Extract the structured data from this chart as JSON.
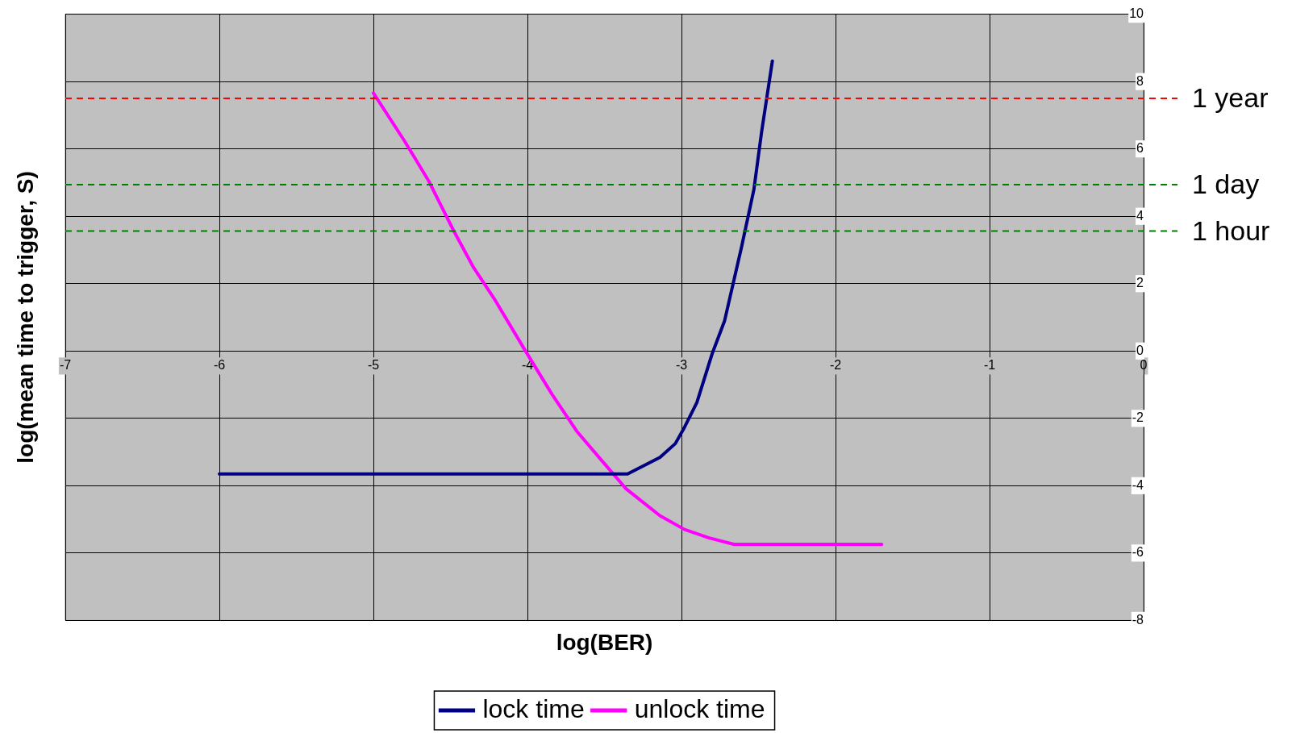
{
  "chart_data": {
    "type": "line",
    "xlabel": "log(BER)",
    "ylabel": "log(mean time to trigger, S)",
    "xlim": [
      -7,
      0
    ],
    "xticks": [
      -7,
      -6,
      -5,
      -4,
      -3,
      -2,
      -1,
      0
    ],
    "ylim": [
      -8,
      10
    ],
    "yticks": [
      -8,
      -6,
      -4,
      -2,
      0,
      2,
      4,
      6,
      8,
      10
    ],
    "grid": true,
    "legend": "bottom",
    "marker": "none",
    "line_style": "solid",
    "series": [
      {
        "name": "lock time",
        "color": "#000080",
        "x": [
          -6,
          -5,
          -4,
          -3.35,
          -3.14,
          -3.04,
          -2.98,
          -2.9,
          -2.8,
          -2.72,
          -2.61,
          -2.53,
          -2.48,
          -2.41
        ],
        "values": [
          -3.65,
          -3.65,
          -3.65,
          -3.65,
          -3.16,
          -2.75,
          -2.26,
          -1.53,
          -0.07,
          0.9,
          3.09,
          4.79,
          6.5,
          8.61
        ]
      },
      {
        "name": "unlock time",
        "color": "#ff00ff",
        "x": [
          -5,
          -4.8,
          -4.64,
          -4.48,
          -4.35,
          -4.21,
          -4.01,
          -3.84,
          -3.68,
          -3.52,
          -3.36,
          -3.14,
          -2.98,
          -2.82,
          -2.66,
          -2.2,
          -1.7
        ],
        "values": [
          7.66,
          6.25,
          5.04,
          3.58,
          2.48,
          1.51,
          -0.02,
          -1.29,
          -2.38,
          -3.24,
          -4.09,
          -4.89,
          -5.3,
          -5.55,
          -5.74,
          -5.74,
          -5.74
        ]
      }
    ],
    "ref_lines": [
      {
        "axis": "y",
        "value": 7.5,
        "label": "1 year",
        "color": "#ff0000",
        "line_style": "dashed"
      },
      {
        "axis": "y",
        "value": 4.94,
        "label": "1 day",
        "color": "#008000",
        "line_style": "dashed"
      },
      {
        "axis": "y",
        "value": 3.56,
        "label": "1 hour",
        "color": "#008000",
        "line_style": "dashed"
      }
    ]
  }
}
